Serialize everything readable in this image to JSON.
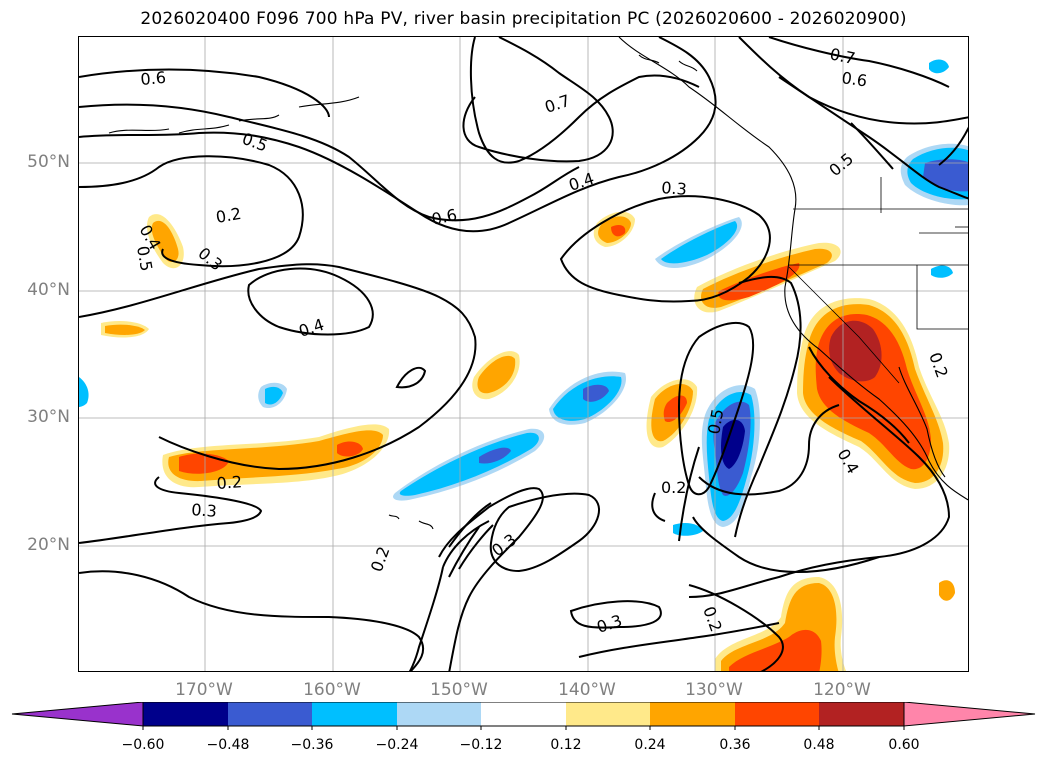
{
  "map": {
    "title": "2026020400 F096 700 hPa PV, river basin precipitation PC (2026020600 - 2026020900)",
    "lat_labels": [
      "50°N",
      "40°N",
      "30°N",
      "20°N"
    ],
    "lon_labels": [
      "170°W",
      "160°W",
      "150°W",
      "140°W",
      "130°W",
      "120°W"
    ],
    "contour_labels": [
      "0.6",
      "0.7",
      "0.7",
      "0.6",
      "0.5",
      "0.5",
      "0.2",
      "0.3",
      "0.4",
      "0.5",
      "0.4",
      "0.4",
      "0.3",
      "0.6",
      "0.2",
      "0.2",
      "0.3",
      "0.2",
      "0.3",
      "0.2",
      "0.3",
      "0.4",
      "0.2",
      "0.5"
    ],
    "colorbar": {
      "ticks": [
        "−0.60",
        "−0.48",
        "−0.36",
        "−0.24",
        "−0.12",
        "0.12",
        "0.24",
        "0.36",
        "0.48",
        "0.60"
      ],
      "colors": [
        "#9932cc",
        "#00008b",
        "#3a5bd1",
        "#00bfff",
        "#add8f5",
        "#ffffff",
        "#ffe98a",
        "#ffa500",
        "#ff4500",
        "#b22222",
        "#ff85aa"
      ],
      "extend": "both"
    },
    "field_colors": {
      "pos1": "#ffe98a",
      "pos2": "#ffa500",
      "pos3": "#ff4500",
      "pos4": "#b22222",
      "neg1": "#add8f5",
      "neg2": "#00bfff",
      "neg3": "#3a5bd1",
      "neg4": "#00008b"
    },
    "contour_color": "#000000",
    "gridlines": true,
    "projection": "PlateCarree"
  }
}
